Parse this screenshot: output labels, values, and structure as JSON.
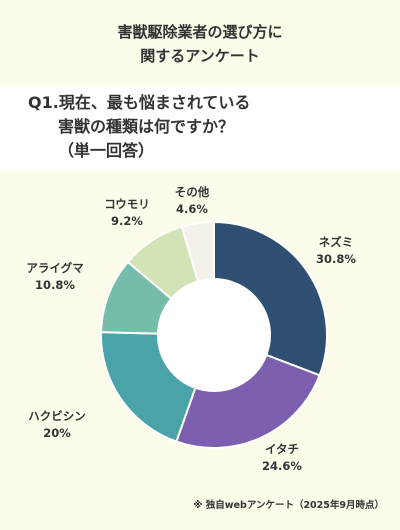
{
  "title": {
    "line1": "害獣駆除業者の選び方に",
    "line2": "関するアンケート"
  },
  "question": {
    "line1": "Q1.現在、最も悩まされている",
    "line2": "害獣の種類は何ですか？",
    "line3": "（単一回答）"
  },
  "footnote": "※ 独自webアンケート（2025年9月時点）",
  "chart_data": {
    "type": "pie",
    "donut": true,
    "categories": [
      "ネズミ",
      "イタチ",
      "ハクビシン",
      "アライグマ",
      "コウモリ",
      "その他"
    ],
    "values": [
      30.8,
      24.6,
      20,
      10.8,
      9.2,
      4.6
    ],
    "value_labels": [
      "30.8%",
      "24.6%",
      "20%",
      "10.8%",
      "9.2%",
      "4.6%"
    ],
    "colors": [
      "#2e4f72",
      "#7c5fae",
      "#4aa3a8",
      "#76bcaa",
      "#d2e4b6",
      "#f4f1eb"
    ],
    "start": "12 o'clock",
    "direction": "clockwise"
  }
}
